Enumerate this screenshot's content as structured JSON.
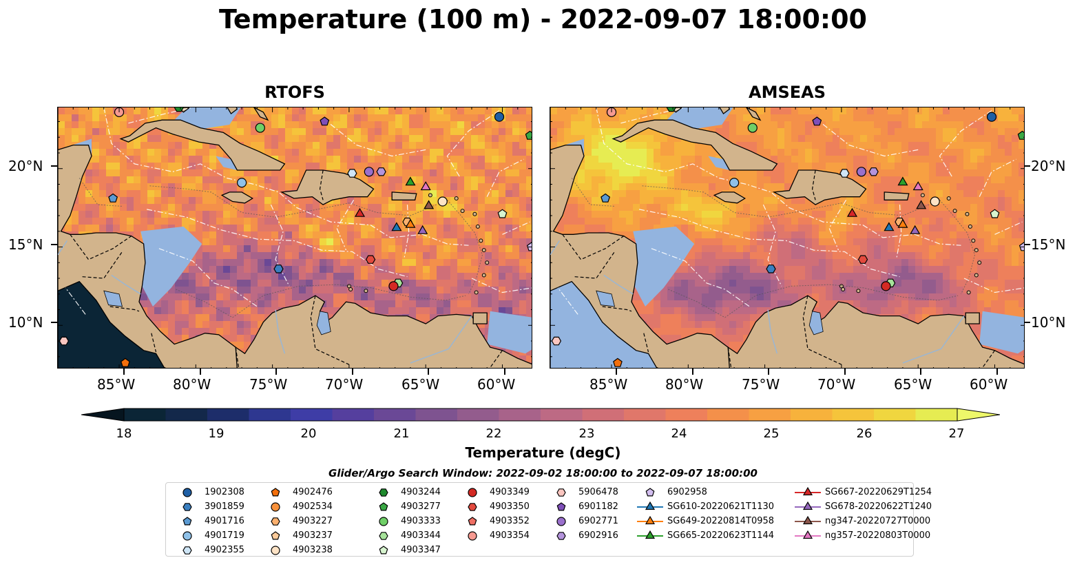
{
  "title": "Temperature (100 m) - 2022-09-07 18:00:00",
  "panels": [
    {
      "title": "RTOFS"
    },
    {
      "title": "AMSEAS"
    }
  ],
  "axes": {
    "lon_ticks": [
      "85°W",
      "80°W",
      "75°W",
      "70°W",
      "65°W",
      "60°W"
    ],
    "lat_ticks": [
      "20°N",
      "15°N",
      "10°N"
    ]
  },
  "colorbar": {
    "label": "Temperature (degC)",
    "ticks": [
      "18",
      "19",
      "20",
      "21",
      "22",
      "23",
      "24",
      "25",
      "26",
      "27"
    ],
    "colors": [
      "#0b2536",
      "#13284a",
      "#1d2d6a",
      "#2e3790",
      "#3e3da6",
      "#553f9e",
      "#6a4896",
      "#7e5390",
      "#935c8d",
      "#a8638a",
      "#bd6a84",
      "#d06f77",
      "#e0776a",
      "#ee805b",
      "#f4904a",
      "#f7a042",
      "#f7b23c",
      "#f5c43b",
      "#f0d63f",
      "#e6ec52"
    ],
    "extend": "both"
  },
  "legend": {
    "title": "Glider/Argo Search Window: 2022-09-02 18:00:00 to 2022-09-07 18:00:00",
    "columns": [
      [
        {
          "label": "1902308",
          "marker": "circle",
          "color": "#1f5fa5"
        },
        {
          "label": "3901859",
          "marker": "hexagon",
          "color": "#3a7fc0"
        },
        {
          "label": "4901716",
          "marker": "pentagon",
          "color": "#5a9ad2"
        },
        {
          "label": "4901719",
          "marker": "circle",
          "color": "#8fc1e8"
        },
        {
          "label": "4902355",
          "marker": "hexagon",
          "color": "#cfe6f7"
        }
      ],
      [
        {
          "label": "4902476",
          "marker": "pentagon",
          "color": "#f36f0c"
        },
        {
          "label": "4902534",
          "marker": "circle",
          "color": "#f8913b"
        },
        {
          "label": "4903227",
          "marker": "hexagon",
          "color": "#fbb06e"
        },
        {
          "label": "4903237",
          "marker": "pentagon",
          "color": "#fdcb9a"
        },
        {
          "label": "4903238",
          "marker": "circle",
          "color": "#fde3c6"
        }
      ],
      [
        {
          "label": "4903244",
          "marker": "hexagon",
          "color": "#1f8a2e"
        },
        {
          "label": "4903277",
          "marker": "pentagon",
          "color": "#3aa845"
        },
        {
          "label": "4903333",
          "marker": "circle",
          "color": "#6fcf67"
        },
        {
          "label": "4903344",
          "marker": "hexagon",
          "color": "#a6e29a"
        },
        {
          "label": "4903347",
          "marker": "pentagon",
          "color": "#d7f4cf"
        }
      ],
      [
        {
          "label": "4903349",
          "marker": "circle",
          "color": "#d42a24"
        },
        {
          "label": "4903350",
          "marker": "hexagon",
          "color": "#e34a3e"
        },
        {
          "label": "4903352",
          "marker": "pentagon",
          "color": "#ef6f64"
        },
        {
          "label": "4903354",
          "marker": "circle",
          "color": "#f79a91"
        }
      ],
      [
        {
          "label": "5906478",
          "marker": "hexagon",
          "color": "#fbc6c0"
        },
        {
          "label": "6901182",
          "marker": "pentagon",
          "color": "#7e4fb8"
        },
        {
          "label": "6902771",
          "marker": "circle",
          "color": "#9a70cc"
        },
        {
          "label": "6902916",
          "marker": "hexagon",
          "color": "#b494dc"
        }
      ],
      [
        {
          "label": "6902958",
          "marker": "pentagon",
          "color": "#d3bff0"
        },
        {
          "label": "SG610-20220621T1130",
          "marker": "triangle",
          "color": "#1f77b4",
          "line": true
        },
        {
          "label": "SG649-20220814T0958",
          "marker": "triangle",
          "color": "#ff7f0e",
          "line": true
        },
        {
          "label": "SG665-20220623T1144",
          "marker": "triangle",
          "color": "#2ca02c",
          "line": true
        }
      ],
      [
        {
          "label": "SG667-20220629T1254",
          "marker": "triangle",
          "color": "#d62728",
          "line": true
        },
        {
          "label": "SG678-20220622T1240",
          "marker": "triangle",
          "color": "#9467bd",
          "line": true
        },
        {
          "label": "ng347-20220727T0000",
          "marker": "triangle",
          "color": "#8c564b",
          "line": true
        },
        {
          "label": "ng357-20220803T0000",
          "marker": "triangle",
          "color": "#e377c2",
          "line": true
        }
      ]
    ]
  },
  "observations": [
    {
      "id": "1902308",
      "lon": -60.2,
      "lat": 23.3
    },
    {
      "id": "3901859",
      "lon": -74.6,
      "lat": 13.6
    },
    {
      "id": "4901716",
      "lon": -85.4,
      "lat": 18.1
    },
    {
      "id": "4901719",
      "lon": -77.0,
      "lat": 19.1
    },
    {
      "id": "4902355",
      "lon": -69.8,
      "lat": 19.7
    },
    {
      "id": "4902476",
      "lon": -84.6,
      "lat": 7.6
    },
    {
      "id": "4903227",
      "lon": -66.2,
      "lat": 16.6
    },
    {
      "id": "4903238",
      "lon": -63.9,
      "lat": 17.9
    },
    {
      "id": "4903244",
      "lon": -81.1,
      "lat": 23.9
    },
    {
      "id": "4903277",
      "lon": -58.2,
      "lat": 22.1
    },
    {
      "id": "4903333",
      "lon": -75.8,
      "lat": 22.6
    },
    {
      "id": "4903344",
      "lon": -66.8,
      "lat": 12.7
    },
    {
      "id": "4903347",
      "lon": -60.0,
      "lat": 17.1
    },
    {
      "id": "4903349",
      "lon": -67.1,
      "lat": 12.5
    },
    {
      "id": "4903350",
      "lon": -68.6,
      "lat": 14.2
    },
    {
      "id": "4903354",
      "lon": -85.0,
      "lat": 23.6
    },
    {
      "id": "5906478",
      "lon": -88.6,
      "lat": 9.0
    },
    {
      "id": "6901182",
      "lon": -71.6,
      "lat": 23.0
    },
    {
      "id": "6902771",
      "lon": -68.7,
      "lat": 19.8
    },
    {
      "id": "6902916",
      "lon": -67.9,
      "lat": 19.8
    },
    {
      "id": "6902958",
      "lon": -58.1,
      "lat": 15.0
    },
    {
      "id": "SG610-20220621T1130",
      "lon": -66.9,
      "lat": 16.3
    },
    {
      "id": "SG649-20220814T0958",
      "lon": -66.0,
      "lat": 16.5
    },
    {
      "id": "SG665-20220623T1144",
      "lon": -66.0,
      "lat": 19.2
    },
    {
      "id": "SG667-20220629T1254",
      "lon": -69.3,
      "lat": 17.2
    },
    {
      "id": "SG678-20220622T1240",
      "lon": -65.2,
      "lat": 16.1
    },
    {
      "id": "ng347-20220727T0000",
      "lon": -64.8,
      "lat": 17.7
    },
    {
      "id": "ng357-20220803T0000",
      "lon": -65.0,
      "lat": 18.9
    }
  ]
}
